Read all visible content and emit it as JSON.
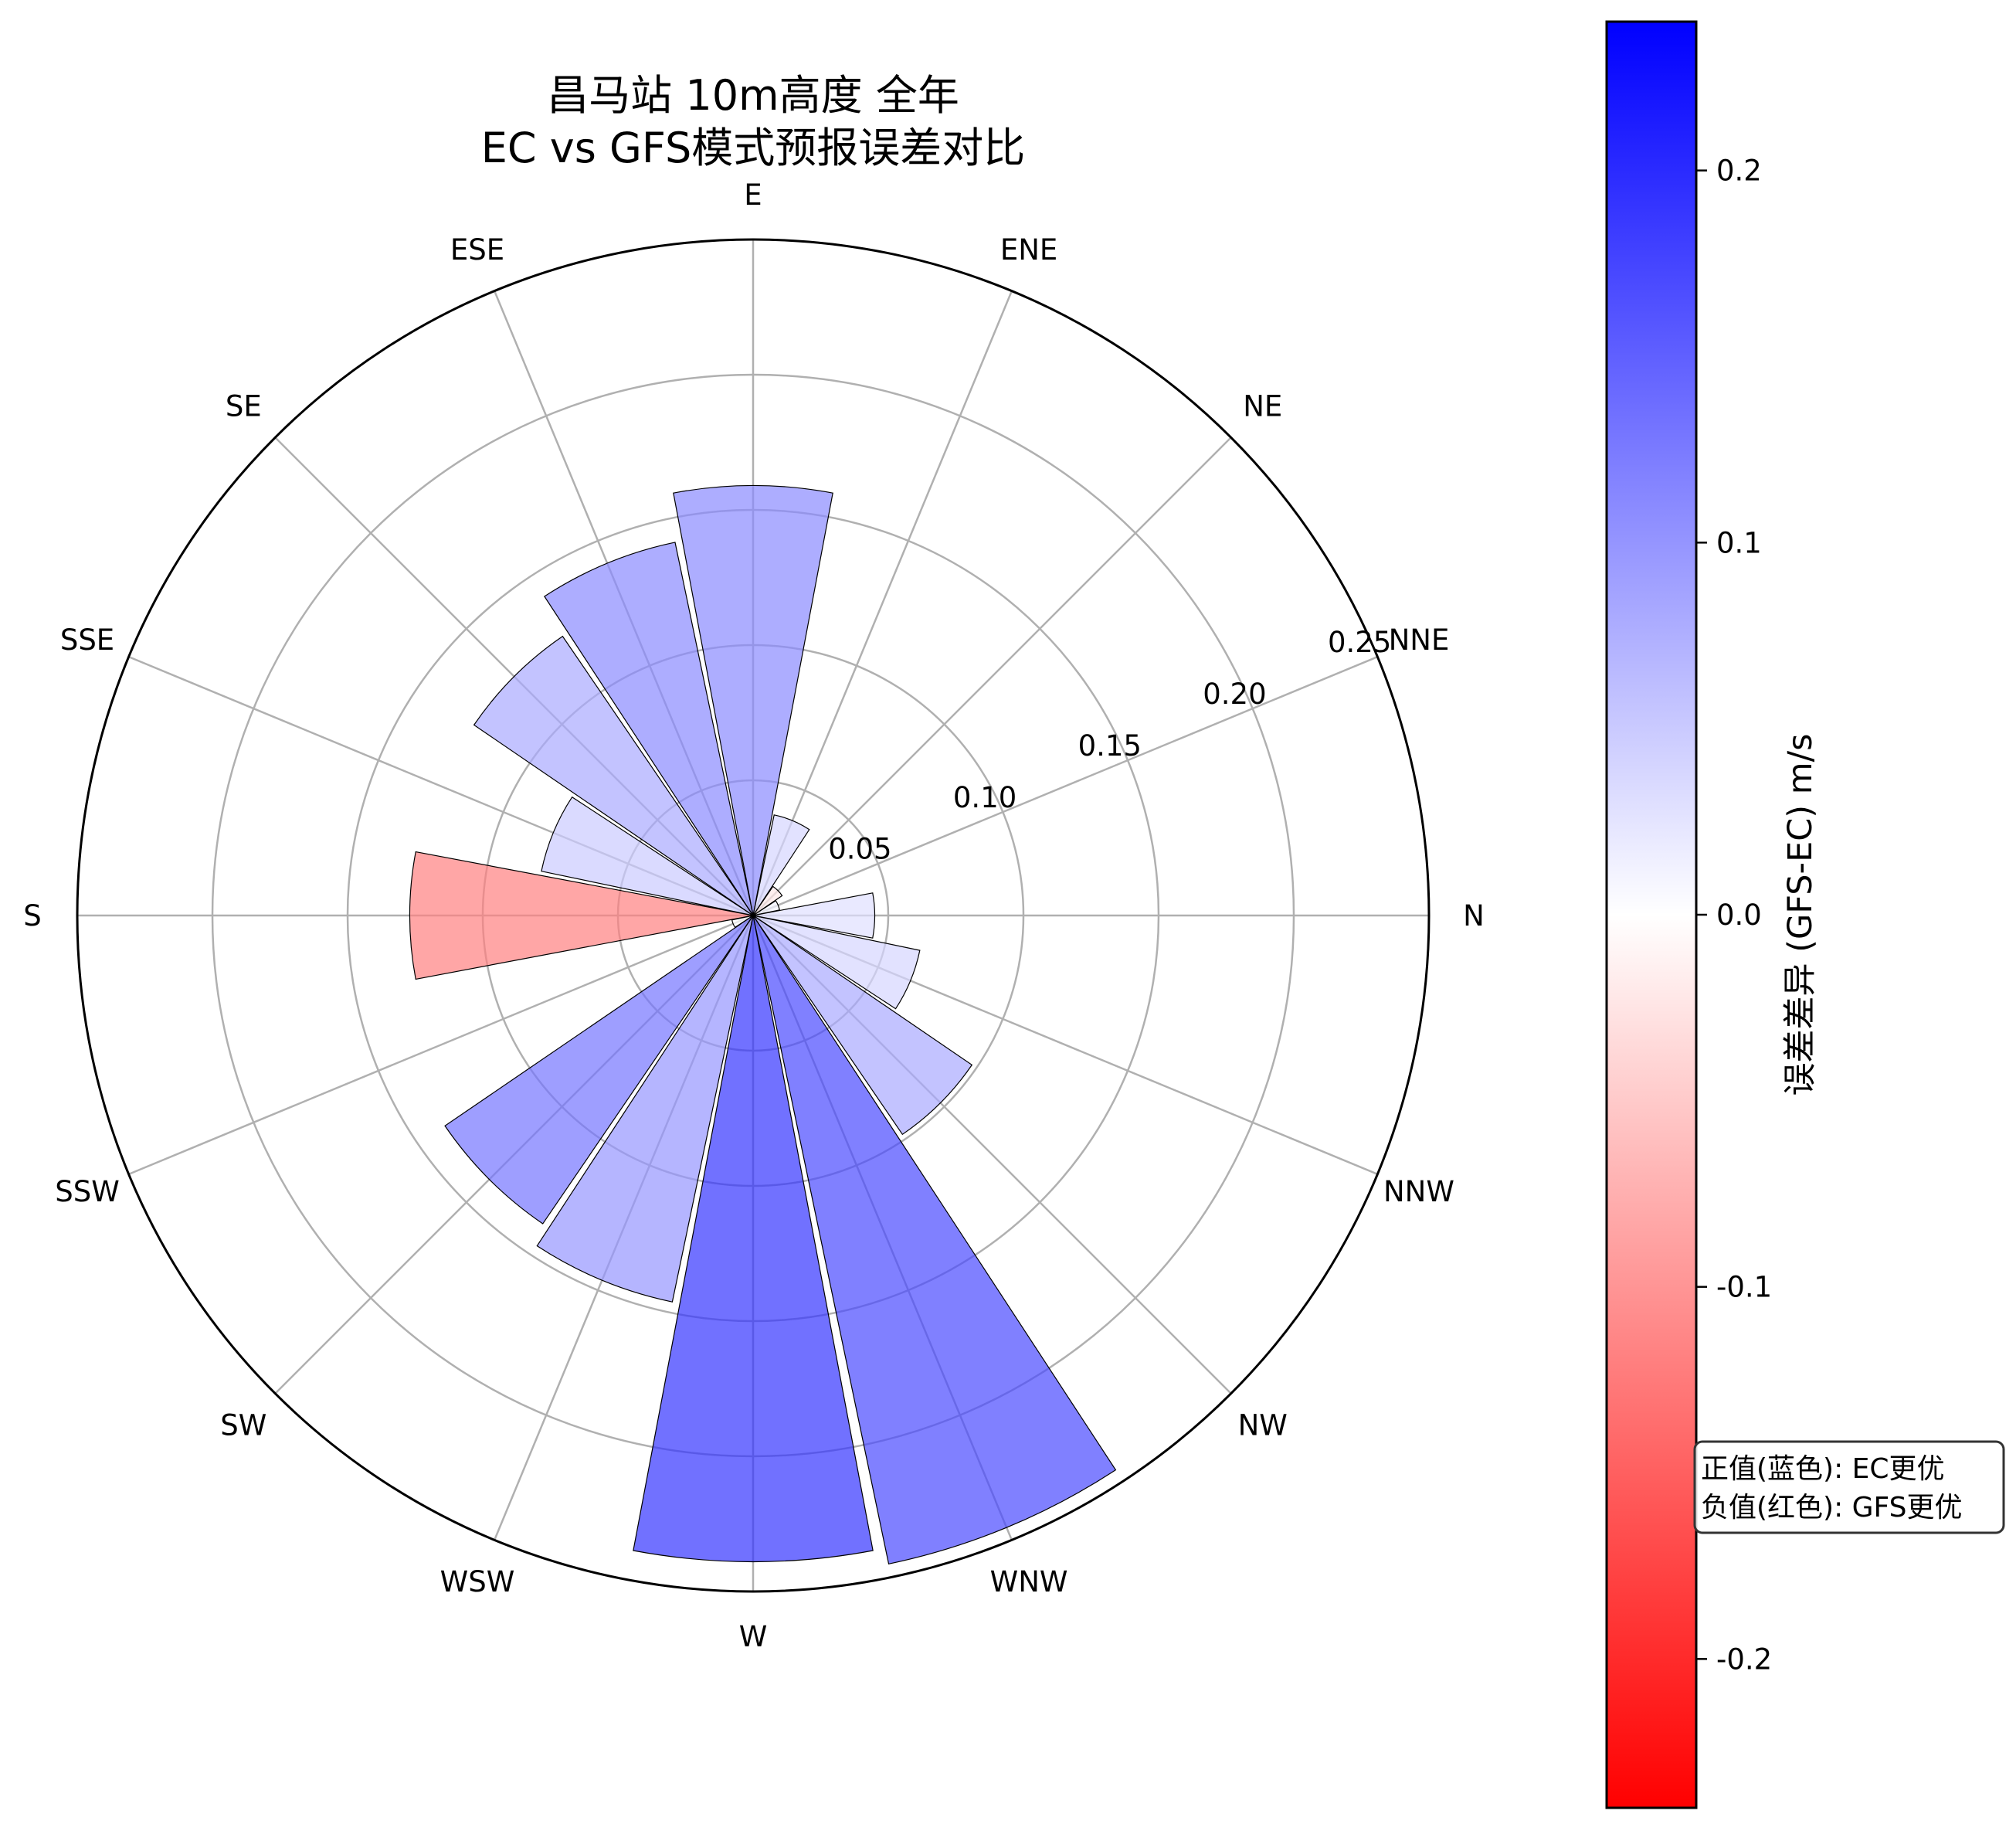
{
  "chart_data": {
    "type": "polar-bar",
    "title": [
      "昌马站 10m高度 全年",
      "EC vs GFS模式预报误差对比"
    ],
    "directions": [
      "N",
      "NNE",
      "NE",
      "ENE",
      "E",
      "ESE",
      "SE",
      "SSE",
      "S",
      "SSW",
      "SW",
      "WSW",
      "W",
      "WNW",
      "NW",
      "NNW"
    ],
    "bars": [
      {
        "direction": "N",
        "error": 0.045,
        "diff": 0.03
      },
      {
        "direction": "NNE",
        "error": 0.01,
        "diff": 0.01
      },
      {
        "direction": "NE",
        "error": 0.013,
        "diff": -0.02
      },
      {
        "direction": "ENE",
        "error": 0.038,
        "diff": 0.04
      },
      {
        "direction": "E",
        "error": 0.159,
        "diff": 0.11
      },
      {
        "direction": "ESE",
        "error": 0.141,
        "diff": 0.11
      },
      {
        "direction": "SE",
        "error": 0.125,
        "diff": 0.08
      },
      {
        "direction": "SSE",
        "error": 0.08,
        "diff": 0.05
      },
      {
        "direction": "S",
        "error": 0.127,
        "diff": -0.12
      },
      {
        "direction": "SSW",
        "error": 0.008,
        "diff": 0.0
      },
      {
        "direction": "SW",
        "error": 0.138,
        "diff": 0.13
      },
      {
        "direction": "WSW",
        "error": 0.146,
        "diff": 0.1
      },
      {
        "direction": "W",
        "error": 0.239,
        "diff": 0.19
      },
      {
        "direction": "WNW",
        "error": 0.245,
        "diff": 0.17
      },
      {
        "direction": "NW",
        "error": 0.098,
        "diff": 0.08
      },
      {
        "direction": "NNW",
        "error": 0.063,
        "diff": 0.04
      }
    ],
    "rlim": [
      0,
      0.25
    ],
    "rticks": [
      0.05,
      0.1,
      0.15,
      0.2,
      0.25
    ],
    "rtick_labels": [
      "0.05",
      "0.10",
      "0.15",
      "0.20",
      "0.25"
    ],
    "theta_zero": "right",
    "theta_direction": "counterclockwise",
    "grid": true,
    "colorbar": {
      "label": "误差差异 (GFS-EC) m/s",
      "min": -0.24,
      "max": 0.24,
      "ticks": [
        -0.2,
        -0.1,
        0.0,
        0.1,
        0.2
      ],
      "tick_labels": [
        "-0.2",
        "-0.1",
        "0.0",
        "0.1",
        "0.2"
      ],
      "cmap": [
        "#ff0000",
        "#ffffff",
        "#0000ff"
      ]
    },
    "annotation": [
      "正值(蓝色): EC更优",
      "负值(红色): GFS更优"
    ]
  }
}
